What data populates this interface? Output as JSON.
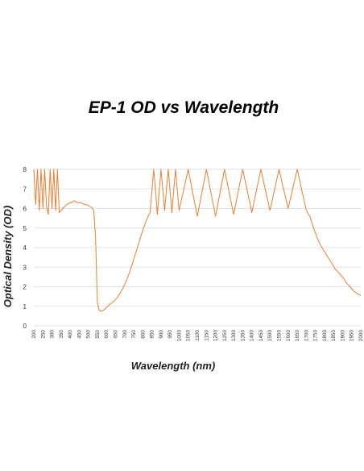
{
  "chart_data": {
    "type": "line",
    "title": "EP-1 OD vs Wavelength",
    "xlabel": "Wavelength (nm)",
    "ylabel": "Optical Density (OD)",
    "xlim": [
      200,
      2000
    ],
    "ylim": [
      0,
      8
    ],
    "y_ticks": [
      "0",
      "1",
      "2",
      "3",
      "4",
      "5",
      "6",
      "7",
      "8"
    ],
    "x_ticks": [
      "200",
      "250",
      "300",
      "350",
      "400",
      "450",
      "500",
      "550",
      "600",
      "650",
      "700",
      "750",
      "800",
      "850",
      "900",
      "950",
      "1000",
      "1050",
      "1100",
      "1150",
      "1200",
      "1250",
      "1300",
      "1350",
      "1400",
      "1450",
      "1500",
      "1550",
      "1600",
      "1650",
      "1700",
      "1750",
      "1800",
      "1850",
      "1900",
      "1950",
      "2000"
    ],
    "grid": "horizontal",
    "legend": "none",
    "series": [
      {
        "color": "#ed7d31",
        "x": [
          200,
          210,
          220,
          230,
          240,
          250,
          260,
          270,
          280,
          290,
          300,
          310,
          320,
          330,
          340,
          350,
          360,
          370,
          380,
          390,
          400,
          410,
          420,
          430,
          440,
          450,
          460,
          470,
          480,
          490,
          500,
          510,
          520,
          530,
          540,
          550,
          560,
          570,
          580,
          590,
          600,
          620,
          640,
          660,
          680,
          700,
          720,
          740,
          760,
          780,
          800,
          820,
          840,
          860,
          880,
          900,
          920,
          940,
          960,
          980,
          1000,
          1050,
          1100,
          1150,
          1200,
          1250,
          1300,
          1350,
          1400,
          1450,
          1500,
          1550,
          1600,
          1650,
          1700,
          1720,
          1740,
          1760,
          1780,
          1800,
          1820,
          1840,
          1860,
          1880,
          1900,
          1920,
          1940,
          1960,
          1980,
          2000
        ],
        "y": [
          8,
          6.2,
          8,
          5.9,
          8,
          6.0,
          8,
          6.1,
          5.7,
          8,
          6.0,
          8,
          5.9,
          8,
          5.8,
          5.9,
          6.0,
          6.1,
          6.2,
          6.25,
          6.3,
          6.3,
          6.4,
          6.35,
          6.3,
          6.3,
          6.3,
          6.25,
          6.2,
          6.2,
          6.15,
          6.1,
          6.05,
          5.9,
          4.5,
          1.2,
          0.8,
          0.75,
          0.78,
          0.85,
          0.95,
          1.1,
          1.25,
          1.45,
          1.75,
          2.1,
          2.55,
          3.1,
          3.7,
          4.3,
          4.9,
          5.4,
          5.8,
          8,
          5.7,
          8,
          5.9,
          8,
          5.8,
          8,
          5.9,
          8,
          5.6,
          8,
          5.6,
          8,
          5.7,
          8,
          5.8,
          8,
          5.9,
          8,
          6.0,
          8,
          5.9,
          5.6,
          5.0,
          4.5,
          4.1,
          3.8,
          3.5,
          3.2,
          2.9,
          2.7,
          2.5,
          2.2,
          2.0,
          1.8,
          1.65,
          1.55
        ]
      }
    ]
  }
}
